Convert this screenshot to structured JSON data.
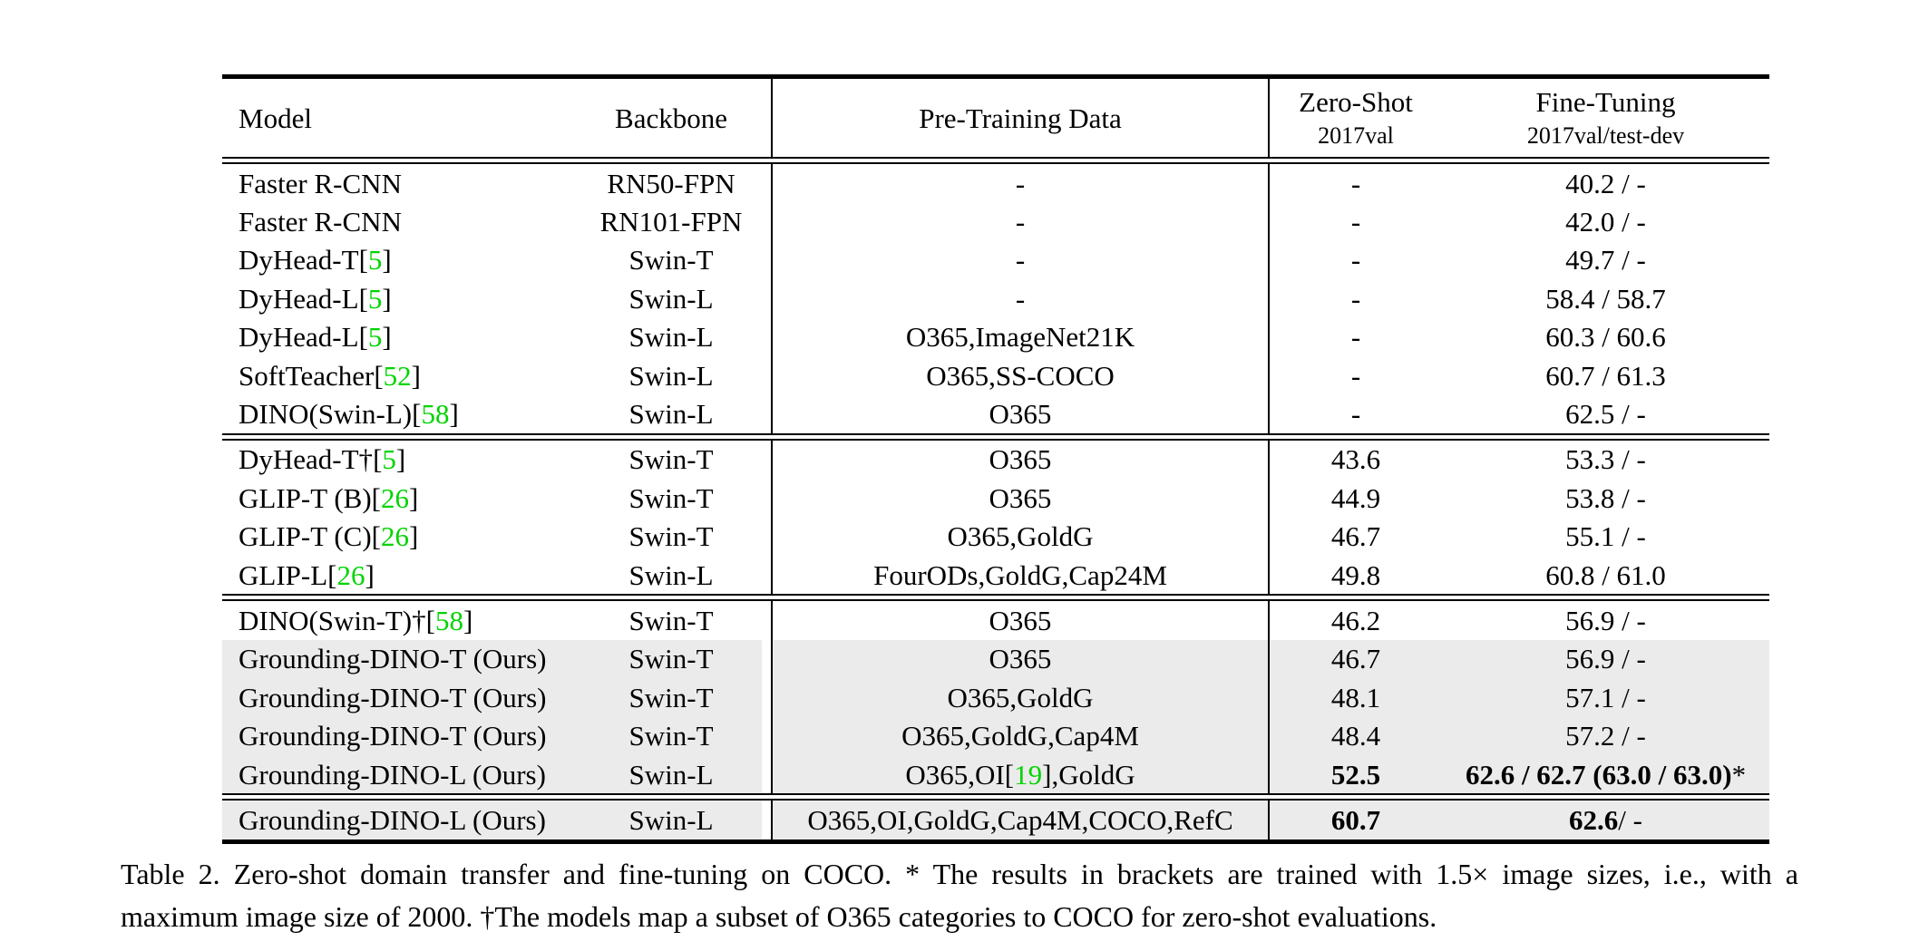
{
  "colors": {
    "citation_green": "#00D400",
    "row_highlight": "#EBEBEB"
  },
  "table": {
    "headers": {
      "model": "Model",
      "backbone": "Backbone",
      "pretrain": "Pre-Training Data",
      "zeroshot_line1": "Zero-Shot",
      "zeroshot_line2": "2017val",
      "finetune_line1": "Fine-Tuning",
      "finetune_line2": "2017val/test-dev"
    },
    "groups": [
      {
        "rows": [
          {
            "model_pre": "Faster R-CNN",
            "backbone": "RN50-FPN",
            "pretrain_pre": "-",
            "zs": "-",
            "ft": "40.2 / -"
          },
          {
            "model_pre": "Faster R-CNN",
            "backbone": "RN101-FPN",
            "pretrain_pre": "-",
            "zs": "-",
            "ft": "42.0 / -"
          },
          {
            "model_pre": "DyHead-T ",
            "model_cite": "5",
            "backbone": "Swin-T",
            "pretrain_pre": "-",
            "zs": "-",
            "ft": "49.7 / -"
          },
          {
            "model_pre": "DyHead-L ",
            "model_cite": "5",
            "backbone": "Swin-L",
            "pretrain_pre": "-",
            "zs": "-",
            "ft": "58.4 / 58.7"
          },
          {
            "model_pre": "DyHead-L ",
            "model_cite": "5",
            "backbone": "Swin-L",
            "pretrain_pre": "O365,ImageNet21K",
            "zs": "-",
            "ft": "60.3 / 60.6"
          },
          {
            "model_pre": "SoftTeacher ",
            "model_cite": "52",
            "backbone": "Swin-L",
            "pretrain_pre": "O365,SS-COCO",
            "zs": "-",
            "ft": "60.7 / 61.3"
          },
          {
            "model_pre": "DINO(Swin-L) ",
            "model_cite": "58",
            "backbone": "Swin-L",
            "pretrain_pre": "O365",
            "zs": "-",
            "ft": "62.5 / -"
          }
        ]
      },
      {
        "rows": [
          {
            "model_pre": "DyHead-T† ",
            "model_cite": "5",
            "backbone": "Swin-T",
            "pretrain_pre": "O365",
            "zs": "43.6",
            "ft": "53.3 / -"
          },
          {
            "model_pre": "GLIP-T (B) ",
            "model_cite": "26",
            "backbone": "Swin-T",
            "pretrain_pre": "O365",
            "zs": "44.9",
            "ft": "53.8 / -"
          },
          {
            "model_pre": "GLIP-T (C) ",
            "model_cite": "26",
            "backbone": "Swin-T",
            "pretrain_pre": "O365,GoldG",
            "zs": "46.7",
            "ft": "55.1 / -"
          },
          {
            "model_pre": "GLIP-L ",
            "model_cite": "26",
            "backbone": "Swin-L",
            "pretrain_pre": "FourODs,GoldG,Cap24M",
            "zs": "49.8",
            "ft": "60.8 / 61.0"
          }
        ]
      },
      {
        "rows": [
          {
            "model_pre": "DINO(Swin-T)† ",
            "model_cite": "58",
            "backbone": "Swin-T",
            "pretrain_pre": "O365",
            "zs": "46.2",
            "ft": "56.9 / -"
          },
          {
            "model_pre": "Grounding-DINO-T (Ours)",
            "backbone": "Swin-T",
            "pretrain_pre": "O365",
            "zs": "46.7",
            "ft": "56.9 / -",
            "hl": true
          },
          {
            "model_pre": "Grounding-DINO-T (Ours)",
            "backbone": "Swin-T",
            "pretrain_pre": "O365,GoldG",
            "zs": "48.1",
            "ft": "57.1 / -",
            "hl": true
          },
          {
            "model_pre": "Grounding-DINO-T (Ours)",
            "backbone": "Swin-T",
            "pretrain_pre": "O365,GoldG,Cap4M",
            "zs": "48.4",
            "ft": "57.2 / -",
            "hl": true
          },
          {
            "model_pre": "Grounding-DINO-L (Ours)",
            "backbone": "Swin-L",
            "pretrain_pre": "O365,OI ",
            "pretrain_cite": "19",
            "pretrain_post": ",GoldG",
            "zs": "52.5",
            "zs_bold": true,
            "ft": "62.6 / 62.7 (63.0 / 63.0)",
            "ft_bold": true,
            "ft_suffix": "*",
            "hl": true
          }
        ]
      },
      {
        "rows": [
          {
            "model_pre": "Grounding-DINO-L (Ours)",
            "backbone": "Swin-L",
            "pretrain_pre": "O365,OI,GoldG,Cap4M,COCO,RefC",
            "zs": "60.7",
            "zs_bold": true,
            "ft": "62.6",
            "ft_bold": true,
            "ft_suffix": " / -",
            "hl": true
          }
        ]
      }
    ]
  },
  "caption": {
    "line1": "Table 2.  Zero-shot domain transfer and fine-tuning on COCO. * The results in brackets are trained with 1.5× image sizes, i.e., with a",
    "line2": "maximum image size of 2000. †The models map a subset of O365 categories to COCO for zero-shot evaluations."
  }
}
